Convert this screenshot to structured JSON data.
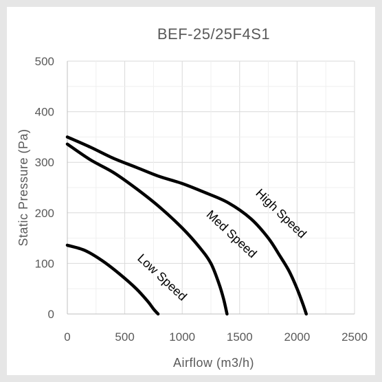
{
  "chart_data": {
    "type": "line",
    "title": "BEF-25/25F4S1",
    "xlabel": "Airflow (m3/h)",
    "ylabel": "Static Pressure (Pa)",
    "xlim": [
      0,
      2500
    ],
    "ylim": [
      0,
      500
    ],
    "x_ticks": [
      "0",
      "500",
      "1000",
      "1500",
      "2000",
      "2500"
    ],
    "y_ticks": [
      "0",
      "100",
      "200",
      "300",
      "400",
      "500"
    ],
    "grid": true,
    "legend": "none",
    "line_color": "#000000",
    "series": [
      {
        "name": "Low Speed",
        "points": [
          [
            0,
            136
          ],
          [
            150,
            126
          ],
          [
            300,
            106
          ],
          [
            450,
            80
          ],
          [
            600,
            50
          ],
          [
            700,
            25
          ],
          [
            750,
            10
          ],
          [
            790,
            0
          ]
        ]
      },
      {
        "name": "Med Speed",
        "points": [
          [
            0,
            336
          ],
          [
            200,
            305
          ],
          [
            400,
            280
          ],
          [
            600,
            248
          ],
          [
            800,
            212
          ],
          [
            1000,
            170
          ],
          [
            1150,
            132
          ],
          [
            1250,
            100
          ],
          [
            1320,
            60
          ],
          [
            1360,
            30
          ],
          [
            1390,
            0
          ]
        ]
      },
      {
        "name": "High Speed",
        "points": [
          [
            0,
            350
          ],
          [
            200,
            330
          ],
          [
            400,
            308
          ],
          [
            600,
            290
          ],
          [
            800,
            272
          ],
          [
            1000,
            258
          ],
          [
            1200,
            240
          ],
          [
            1400,
            220
          ],
          [
            1600,
            188
          ],
          [
            1750,
            150
          ],
          [
            1850,
            115
          ],
          [
            1930,
            85
          ],
          [
            2000,
            50
          ],
          [
            2050,
            20
          ],
          [
            2080,
            0
          ]
        ]
      }
    ]
  }
}
